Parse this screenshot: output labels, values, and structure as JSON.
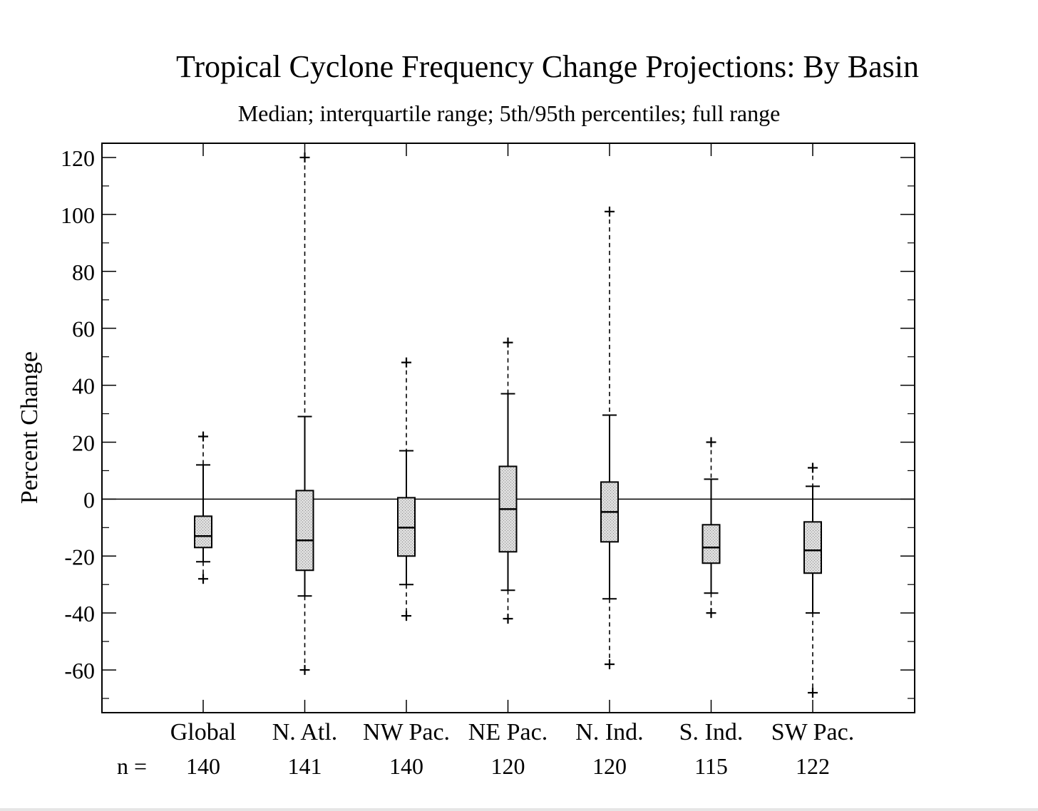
{
  "chart_data": {
    "type": "box",
    "title": "Tropical Cyclone Frequency Change Projections:  By Basin",
    "subtitle": "Median; interquartile range; 5th/95th percentiles; full range",
    "ylabel": "Percent Change",
    "xlabel": "",
    "ylim": [
      -75,
      125
    ],
    "yticks": [
      "120",
      "100",
      "80",
      "60",
      "40",
      "20",
      "0",
      "-20",
      "-40",
      "-60"
    ],
    "ytick_values": [
      120,
      100,
      80,
      60,
      40,
      20,
      0,
      -20,
      -40,
      -60
    ],
    "n_label": "n =",
    "reference_line": 0,
    "grid": false,
    "box_fill": "#d4d4d4",
    "categories": [
      "Global",
      "N. Atl.",
      "NW Pac.",
      "NE Pac.",
      "N. Ind.",
      "S. Ind.",
      "SW Pac."
    ],
    "n": [
      "140",
      "141",
      "140",
      "120",
      "120",
      "115",
      "122"
    ],
    "boxes": [
      {
        "min": -28,
        "p5": -22,
        "q1": -17,
        "median": -13,
        "q3": -6,
        "p95": 12,
        "max": 22
      },
      {
        "min": -60,
        "p5": -34,
        "q1": -25,
        "median": -14.5,
        "q3": 3,
        "p95": 29,
        "max": 120
      },
      {
        "min": -41,
        "p5": -30,
        "q1": -20,
        "median": -10,
        "q3": 0.5,
        "p95": 17,
        "max": 48
      },
      {
        "min": -42,
        "p5": -32,
        "q1": -18.5,
        "median": -3.5,
        "q3": 11.5,
        "p95": 37,
        "max": 55
      },
      {
        "min": -58,
        "p5": -35,
        "q1": -15,
        "median": -4.5,
        "q3": 6,
        "p95": 29.5,
        "max": 101
      },
      {
        "min": -40,
        "p5": -33,
        "q1": -22.5,
        "median": -17,
        "q3": -9,
        "p95": 7,
        "max": 20
      },
      {
        "min": -68,
        "p5": -40,
        "q1": -26,
        "median": -18,
        "q3": -8,
        "p95": 4.5,
        "max": 11
      }
    ]
  }
}
